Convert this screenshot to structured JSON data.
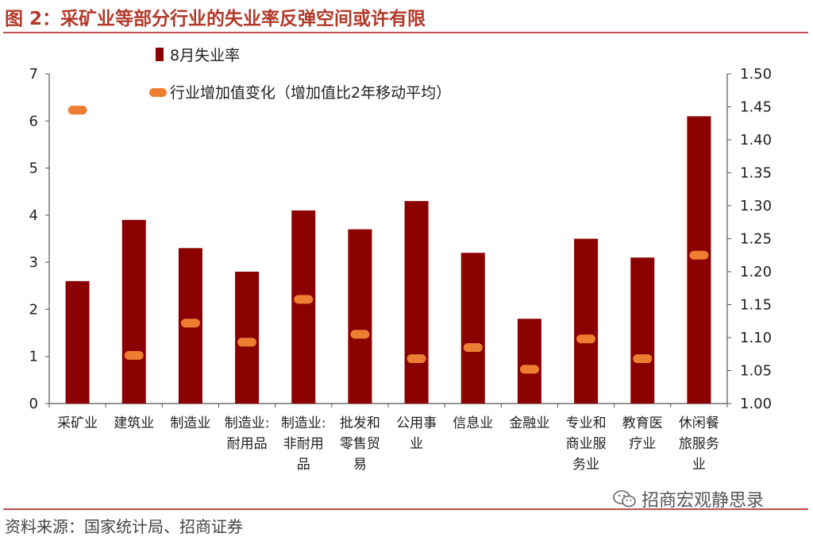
{
  "title": "图 2：采矿业等部分行业的失业率反弹空间或许有限",
  "source": "资料来源：国家统计局、招商证券",
  "watermark": "招商宏观静思录",
  "colors": {
    "bar": "#8b0000",
    "marker": "#ed7d31",
    "title": "#b23a2b",
    "rule": "#c0504d"
  },
  "chart_data": {
    "type": "bar",
    "categories": [
      [
        "采矿业"
      ],
      [
        "建筑业"
      ],
      [
        "制造业"
      ],
      [
        "制造业:",
        "耐用品"
      ],
      [
        "制造业:",
        "非耐用",
        "品"
      ],
      [
        "批发和",
        "零售贸",
        "易"
      ],
      [
        "公用事",
        "业"
      ],
      [
        "信息业"
      ],
      [
        "金融业"
      ],
      [
        "专业和",
        "商业服",
        "务业"
      ],
      [
        "教育医",
        "疗业"
      ],
      [
        "休闲餐",
        "旅服务",
        "业"
      ]
    ],
    "series": [
      {
        "name": "8月失业率",
        "type": "bar",
        "axis": "left",
        "values": [
          2.6,
          3.9,
          3.3,
          2.8,
          4.1,
          3.7,
          4.3,
          3.2,
          1.8,
          3.5,
          3.1,
          6.1
        ]
      },
      {
        "name": "行业增加值变化（增加值比2年移动平均）",
        "type": "marker",
        "axis": "right",
        "values": [
          1.445,
          1.073,
          1.122,
          1.093,
          1.158,
          1.105,
          1.068,
          1.085,
          1.052,
          1.098,
          1.068,
          1.225
        ]
      }
    ],
    "y_left": {
      "ylim": [
        0,
        7
      ],
      "ticks": [
        "0",
        "1",
        "2",
        "3",
        "4",
        "5",
        "6",
        "7"
      ]
    },
    "y_right": {
      "ylim": [
        1.0,
        1.5
      ],
      "ticks": [
        "1.00",
        "1.05",
        "1.10",
        "1.15",
        "1.20",
        "1.25",
        "1.30",
        "1.35",
        "1.40",
        "1.45",
        "1.50"
      ]
    },
    "legend_position": "top-left",
    "grid": false
  }
}
